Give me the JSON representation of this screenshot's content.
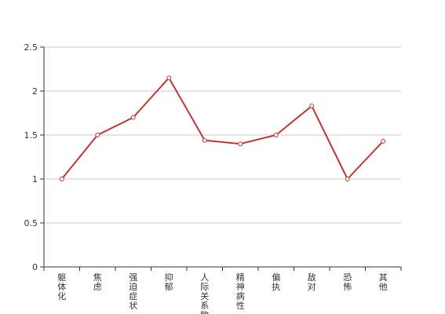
{
  "chart_data": {
    "type": "line",
    "title": "",
    "xlabel": "",
    "ylabel": "",
    "categories": [
      "躯体化",
      "焦虑",
      "强迫症状",
      "抑郁",
      "人际关系敏感",
      "精神病性",
      "偏执",
      "敌对",
      "恐怖",
      "其他"
    ],
    "series": [
      {
        "values": [
          1.0,
          1.5,
          1.7,
          2.15,
          1.44,
          1.4,
          1.5,
          1.83,
          1.0,
          1.43
        ],
        "color": "#c23531"
      }
    ],
    "ylim": [
      0,
      2.5
    ],
    "yticks": [
      0,
      0.5,
      1,
      1.5,
      2,
      2.5
    ],
    "ytick_labels": [
      "0",
      "0.5",
      "1",
      "1.5",
      "2",
      "2.5"
    ],
    "grid": true,
    "legend": "none",
    "colors": {
      "grid": "#cccccc",
      "axis": "#333333",
      "line": "#c23531",
      "marker_fill": "#ffffff"
    }
  }
}
